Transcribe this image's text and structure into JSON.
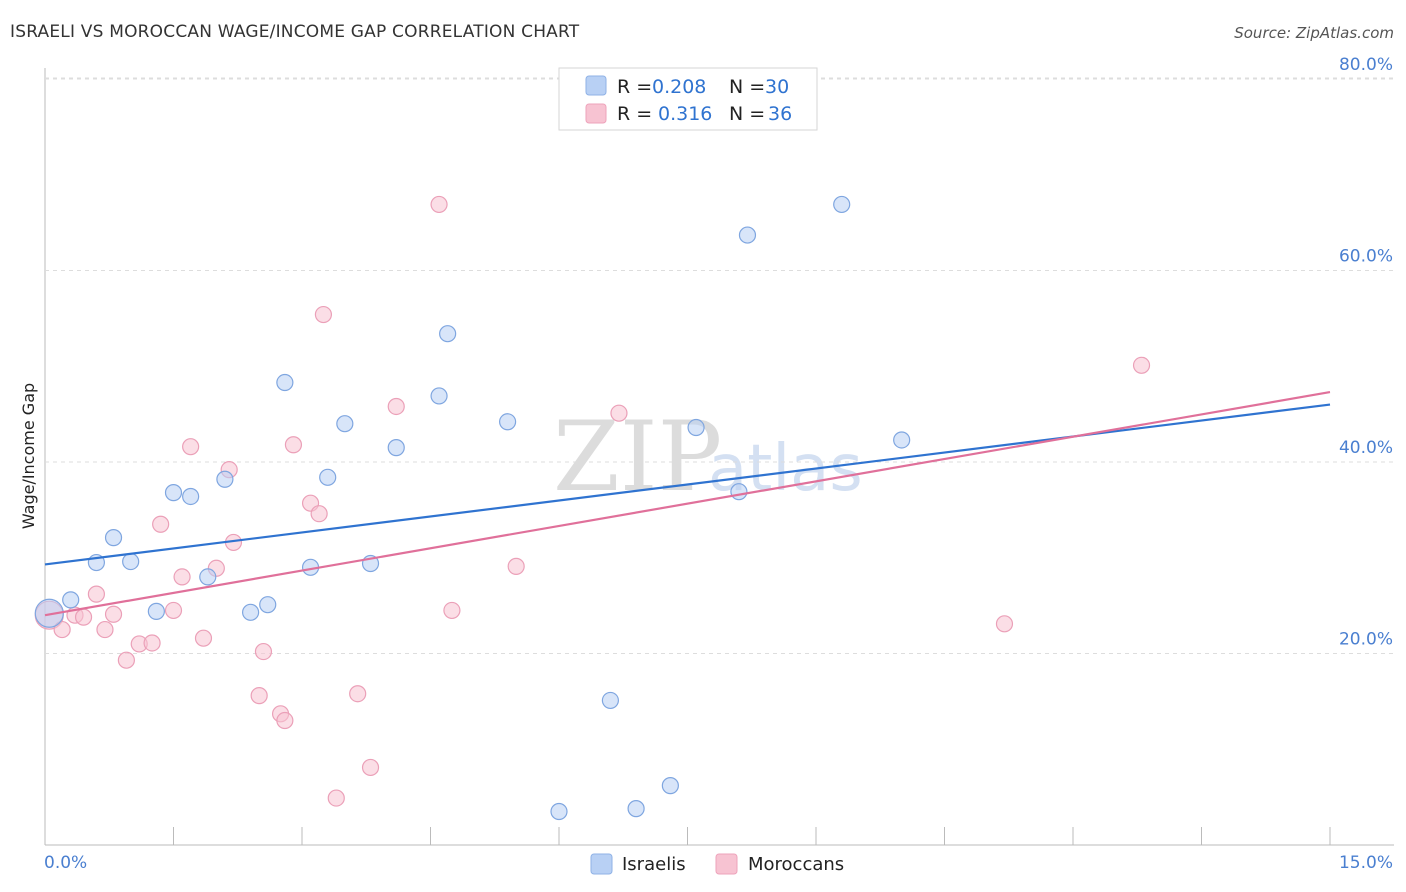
{
  "header": {
    "title": "ISRAELI VS MOROCCAN WAGE/INCOME GAP CORRELATION CHART",
    "source": "Source: ZipAtlas.com"
  },
  "watermark": {
    "zip": "ZIP",
    "atlas": "atlas"
  },
  "legend": {
    "rows": [
      {
        "r_label": "R =",
        "r_value": "0.208",
        "n_label": "N =",
        "n_value": "30"
      },
      {
        "r_label": "R =",
        "r_value": "0.316",
        "n_label": "N =",
        "n_value": "36"
      }
    ]
  },
  "bottom_legend": {
    "israelis": "Israelis",
    "moroccans": "Moroccans"
  },
  "chart_data": {
    "type": "scatter",
    "title": "ISRAELI VS MOROCCAN WAGE/INCOME GAP CORRELATION CHART",
    "xlabel": "",
    "ylabel": "Wage/Income Gap",
    "xlim": [
      0,
      15
    ],
    "ylim": [
      0,
      80
    ],
    "x_tick_labels": {
      "min": "0.0%",
      "max": "15.0%"
    },
    "y_ticks": [
      20,
      40,
      60,
      80
    ],
    "y_tick_labels": [
      "20.0%",
      "40.0%",
      "60.0%",
      "80.0%"
    ],
    "grid": true,
    "legend_position": "top-center",
    "colors": {
      "israelis_fill": "#b8d0f4",
      "israelis_line": "#2f73d0",
      "moroccans_fill": "#f7c3d2",
      "moroccans_line": "#e0709a"
    },
    "series": [
      {
        "name": "Israelis",
        "trend": {
          "x": [
            0,
            15
          ],
          "y": [
            29.3,
            46.0
          ]
        },
        "points": [
          [
            0.05,
            24.2
          ],
          [
            0.3,
            25.6
          ],
          [
            0.6,
            29.5
          ],
          [
            0.8,
            32.1
          ],
          [
            1.0,
            29.6
          ],
          [
            1.3,
            24.4
          ],
          [
            1.5,
            36.8
          ],
          [
            1.7,
            36.4
          ],
          [
            1.9,
            28.0
          ],
          [
            2.1,
            38.2
          ],
          [
            2.4,
            24.3
          ],
          [
            2.6,
            25.1
          ],
          [
            2.8,
            48.3
          ],
          [
            3.1,
            29.0
          ],
          [
            3.3,
            38.4
          ],
          [
            3.5,
            44.0
          ],
          [
            3.8,
            29.4
          ],
          [
            4.1,
            41.5
          ],
          [
            4.6,
            46.9
          ],
          [
            4.7,
            53.4
          ],
          [
            5.4,
            44.2
          ],
          [
            6.0,
            3.5
          ],
          [
            6.6,
            15.1
          ],
          [
            6.9,
            3.8
          ],
          [
            7.3,
            6.2
          ],
          [
            7.6,
            43.6
          ],
          [
            8.1,
            36.9
          ],
          [
            8.2,
            63.7
          ],
          [
            9.3,
            66.9
          ],
          [
            10.0,
            42.3
          ]
        ]
      },
      {
        "name": "Moroccans",
        "trend": {
          "x": [
            0,
            15
          ],
          "y": [
            24.0,
            47.3
          ]
        },
        "points": [
          [
            0.05,
            24.0
          ],
          [
            0.2,
            22.5
          ],
          [
            0.35,
            24.0
          ],
          [
            0.45,
            23.8
          ],
          [
            0.6,
            26.2
          ],
          [
            0.7,
            22.5
          ],
          [
            0.8,
            24.1
          ],
          [
            0.95,
            19.3
          ],
          [
            1.1,
            21.0
          ],
          [
            1.25,
            21.1
          ],
          [
            1.35,
            33.5
          ],
          [
            1.5,
            24.5
          ],
          [
            1.6,
            28.0
          ],
          [
            1.7,
            41.6
          ],
          [
            1.85,
            21.6
          ],
          [
            2.0,
            28.9
          ],
          [
            2.15,
            39.2
          ],
          [
            2.2,
            31.6
          ],
          [
            2.5,
            15.6
          ],
          [
            2.55,
            20.2
          ],
          [
            2.75,
            13.7
          ],
          [
            2.8,
            13.0
          ],
          [
            2.9,
            41.8
          ],
          [
            3.1,
            35.7
          ],
          [
            3.2,
            34.6
          ],
          [
            3.25,
            55.4
          ],
          [
            3.4,
            4.9
          ],
          [
            3.65,
            15.8
          ],
          [
            3.8,
            8.1
          ],
          [
            4.1,
            45.8
          ],
          [
            4.6,
            66.9
          ],
          [
            4.75,
            24.5
          ],
          [
            5.5,
            29.1
          ],
          [
            6.7,
            45.1
          ],
          [
            11.2,
            23.1
          ],
          [
            12.8,
            50.1
          ]
        ]
      }
    ]
  }
}
